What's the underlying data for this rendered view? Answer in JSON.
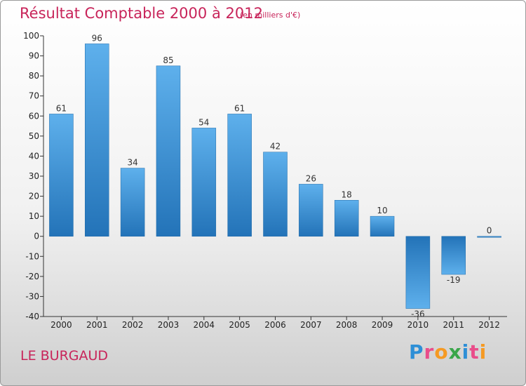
{
  "chart_data": {
    "type": "bar",
    "title": "Résultat Comptable 2000 à 2012",
    "subtitle": "(en milliers d'€)",
    "categories": [
      "2000",
      "2001",
      "2002",
      "2003",
      "2004",
      "2005",
      "2006",
      "2007",
      "2008",
      "2009",
      "2010",
      "2011",
      "2012"
    ],
    "values": [
      61,
      96,
      34,
      85,
      54,
      61,
      42,
      26,
      18,
      10,
      -36,
      -19,
      0
    ],
    "value_labels": [
      "61",
      "96",
      "34",
      "85",
      "54",
      "61",
      "42",
      "26",
      "18",
      "10",
      "-36",
      "-19",
      "0"
    ],
    "y_ticks": [
      "100",
      "90",
      "80",
      "70",
      "60",
      "50",
      "40",
      "30",
      "20",
      "10",
      "0",
      "-10",
      "-20",
      "-30",
      "-40"
    ],
    "ylim": [
      -40,
      100
    ],
    "xlabel": "",
    "ylabel": "",
    "grid": false,
    "bar_color": "#2f8ad0"
  },
  "footer": {
    "place_name": "LE BURGAUD"
  },
  "logo": {
    "text": "Proxiti",
    "letters": [
      "P",
      "r",
      "o",
      "x",
      "i",
      "t",
      "i"
    ],
    "colors": [
      "#2e8fd6",
      "#e94d8a",
      "#f59a23",
      "#3aa64a",
      "#2e8fd6",
      "#e94d8a",
      "#f59a23"
    ]
  }
}
